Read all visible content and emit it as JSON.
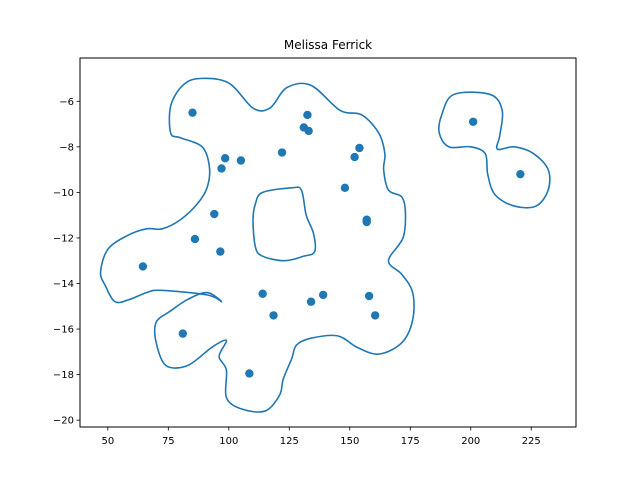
{
  "chart_data": {
    "type": "scatter",
    "title": "Melissa Ferrick",
    "xlabel": "",
    "ylabel": "",
    "xlim": [
      38.5,
      243.5
    ],
    "ylim": [
      -20.3,
      -4.1
    ],
    "xticks": [
      50,
      75,
      100,
      125,
      150,
      175,
      200,
      225
    ],
    "yticks": [
      -20,
      -18,
      -16,
      -14,
      -12,
      -10,
      -8,
      -6
    ],
    "grid": false,
    "color": "#1f77b4",
    "points": [
      {
        "x": 85,
        "y": -6.5
      },
      {
        "x": 132.5,
        "y": -6.6
      },
      {
        "x": 131,
        "y": -7.15
      },
      {
        "x": 133,
        "y": -7.3
      },
      {
        "x": 154,
        "y": -8.05
      },
      {
        "x": 122,
        "y": -8.25
      },
      {
        "x": 152,
        "y": -8.45
      },
      {
        "x": 98.5,
        "y": -8.5
      },
      {
        "x": 105,
        "y": -8.6
      },
      {
        "x": 97,
        "y": -8.95
      },
      {
        "x": 148,
        "y": -9.8
      },
      {
        "x": 94,
        "y": -10.95
      },
      {
        "x": 157,
        "y": -11.2
      },
      {
        "x": 157,
        "y": -11.3
      },
      {
        "x": 86,
        "y": -12.05
      },
      {
        "x": 96.5,
        "y": -12.6
      },
      {
        "x": 64.5,
        "y": -13.25
      },
      {
        "x": 114,
        "y": -14.45
      },
      {
        "x": 139,
        "y": -14.5
      },
      {
        "x": 158,
        "y": -14.55
      },
      {
        "x": 134,
        "y": -14.8
      },
      {
        "x": 118.5,
        "y": -15.4
      },
      {
        "x": 160.5,
        "y": -15.4
      },
      {
        "x": 81,
        "y": -16.2
      },
      {
        "x": 108.5,
        "y": -17.95
      },
      {
        "x": 201,
        "y": -6.9
      },
      {
        "x": 220.5,
        "y": -9.2
      }
    ],
    "contours": [
      {
        "points": [
          [
            88,
            -5.0
          ],
          [
            100,
            -5.2
          ],
          [
            110,
            -6.3
          ],
          [
            117,
            -6.3
          ],
          [
            124,
            -5.4
          ],
          [
            134,
            -5.3
          ],
          [
            146,
            -6.4
          ],
          [
            155,
            -6.6
          ],
          [
            162,
            -7.4
          ],
          [
            164.5,
            -8.3
          ],
          [
            164,
            -9.0
          ],
          [
            166,
            -9.9
          ],
          [
            171.5,
            -10.2
          ],
          [
            173,
            -10.9
          ],
          [
            172,
            -12.0
          ],
          [
            166,
            -13.0
          ],
          [
            171.5,
            -13.6
          ],
          [
            176,
            -14.4
          ],
          [
            176,
            -15.6
          ],
          [
            171.5,
            -16.6
          ],
          [
            162,
            -17.1
          ],
          [
            153,
            -16.8
          ],
          [
            145,
            -16.3
          ],
          [
            134,
            -16.4
          ],
          [
            128,
            -16.7
          ],
          [
            126,
            -17.3
          ],
          [
            122.5,
            -18.2
          ],
          [
            121,
            -18.9
          ],
          [
            115,
            -19.6
          ],
          [
            105,
            -19.5
          ],
          [
            99,
            -19.0
          ],
          [
            99,
            -17.8
          ],
          [
            96,
            -17.2
          ],
          [
            99,
            -16.5
          ],
          [
            93,
            -16.8
          ],
          [
            83,
            -17.6
          ],
          [
            74,
            -17.6
          ],
          [
            70,
            -16.6
          ],
          [
            70,
            -15.7
          ],
          [
            76,
            -15.2
          ],
          [
            83,
            -14.7
          ],
          [
            91,
            -14.4
          ],
          [
            97,
            -14.8
          ],
          [
            91,
            -14.5
          ],
          [
            72,
            -14.3
          ],
          [
            66,
            -14.4
          ],
          [
            59,
            -14.7
          ],
          [
            53,
            -14.8
          ],
          [
            49,
            -14.1
          ],
          [
            47,
            -13.5
          ],
          [
            50,
            -12.5
          ],
          [
            58,
            -11.9
          ],
          [
            66,
            -11.6
          ],
          [
            72.5,
            -11.6
          ],
          [
            80,
            -11.2
          ],
          [
            87,
            -10.5
          ],
          [
            91,
            -9.8
          ],
          [
            92,
            -8.9
          ],
          [
            89,
            -8.0
          ],
          [
            80,
            -7.6
          ],
          [
            76,
            -7.4
          ],
          [
            76,
            -6.2
          ],
          [
            81,
            -5.3
          ]
        ]
      },
      {
        "points": [
          [
            114,
            -10.0
          ],
          [
            126,
            -9.8
          ],
          [
            130,
            -9.9
          ],
          [
            132,
            -11.0
          ],
          [
            135,
            -11.8
          ],
          [
            135.5,
            -12.6
          ],
          [
            131,
            -12.8
          ],
          [
            123,
            -13.0
          ],
          [
            114,
            -12.8
          ],
          [
            111,
            -12.4
          ],
          [
            110,
            -11.2
          ],
          [
            111,
            -10.5
          ]
        ]
      },
      {
        "points": [
          [
            193,
            -5.7
          ],
          [
            208,
            -5.7
          ],
          [
            213,
            -6.4
          ],
          [
            212,
            -7.5
          ],
          [
            211,
            -8.1
          ],
          [
            218,
            -8.0
          ],
          [
            226,
            -8.3
          ],
          [
            232,
            -9.0
          ],
          [
            232,
            -9.9
          ],
          [
            227,
            -10.6
          ],
          [
            218,
            -10.6
          ],
          [
            210,
            -10.1
          ],
          [
            207,
            -9.2
          ],
          [
            206,
            -8.3
          ],
          [
            200,
            -8.0
          ],
          [
            191,
            -8.0
          ],
          [
            187,
            -7.4
          ],
          [
            188,
            -6.6
          ]
        ]
      }
    ]
  }
}
